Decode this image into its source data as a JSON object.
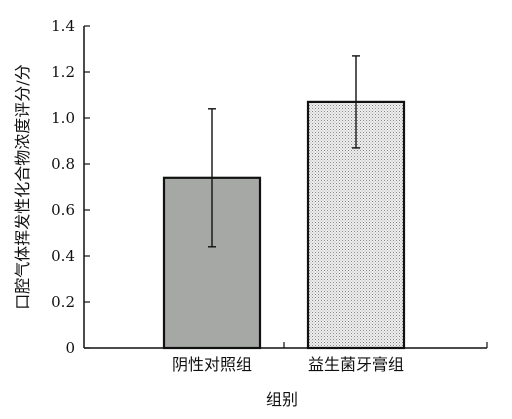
{
  "chart_data": {
    "type": "bar",
    "categories": [
      "阴性对照组",
      "益生菌牙膏组"
    ],
    "values": [
      0.74,
      1.07
    ],
    "error": [
      0.3,
      0.2
    ],
    "bar_colors": [
      "#a6a8a6",
      "#e6e6e6"
    ],
    "bar_fill_styles": [
      "solid",
      "dotted"
    ],
    "xlabel": "组别",
    "ylabel": "口腔气体挥发性化合物浓度评分/分",
    "ylim": [
      0,
      1.4
    ],
    "yticks": [
      "0",
      "0.2",
      "0.4",
      "0.6",
      "0.8",
      "1.0",
      "1.2",
      "1.4"
    ],
    "grid": false,
    "legend": "none"
  }
}
